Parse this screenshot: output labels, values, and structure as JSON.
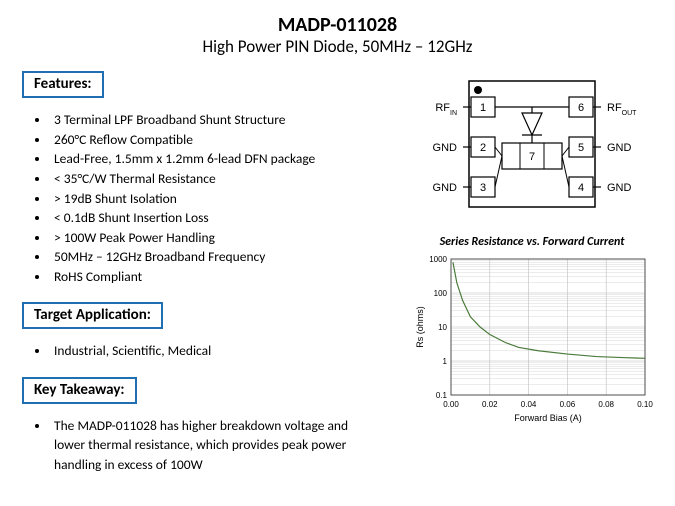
{
  "header": {
    "part_number": "MADP-011028",
    "description": "High Power PIN Diode, 50MHz – 12GHz"
  },
  "features": {
    "label": "Features:",
    "items": [
      "3 Terminal LPF Broadband Shunt Structure",
      "260°C Reflow Compatible",
      "Lead-Free, 1.5mm x 1.2mm 6-lead DFN package",
      "< 35°C/W Thermal Resistance",
      "> 19dB Shunt Isolation",
      "< 0.1dB Shunt Insertion Loss",
      "> 100W Peak Power Handling",
      "50MHz – 12GHz Broadband Frequency",
      "RoHS Compliant"
    ]
  },
  "target_application": {
    "label": "Target Application:",
    "items": [
      "Industrial, Scientific, Medical"
    ]
  },
  "key_takeaway": {
    "label": "Key Takeaway:",
    "items": [
      "The MADP-011028 has higher breakdown voltage and lower thermal resistance, which provides peak power handling in excess of 100W"
    ]
  },
  "pin_diagram": {
    "pins": [
      {
        "num": "1",
        "side": "left",
        "label": "RF",
        "sub": "IN"
      },
      {
        "num": "2",
        "side": "left",
        "label": "GND",
        "sub": ""
      },
      {
        "num": "3",
        "side": "left",
        "label": "GND",
        "sub": ""
      },
      {
        "num": "6",
        "side": "right",
        "label": "RF",
        "sub": "OUT"
      },
      {
        "num": "5",
        "side": "right",
        "label": "GND",
        "sub": ""
      },
      {
        "num": "4",
        "side": "right",
        "label": "GND",
        "sub": ""
      }
    ],
    "center_pad": "7",
    "colors": {
      "stroke": "#000000",
      "fill": "#ffffff"
    }
  },
  "chart": {
    "title": "Series Resistance vs. Forward Current",
    "type": "line",
    "xlabel": "Forward Bias (A)",
    "ylabel": "Rs (ohms)",
    "xlim": [
      0.0,
      0.1
    ],
    "xtick_step": 0.02,
    "xticks": [
      "0.00",
      "0.02",
      "0.04",
      "0.06",
      "0.08",
      "0.10"
    ],
    "y_scale": "log",
    "ylim": [
      0.1,
      1000
    ],
    "yticks": [
      "0.1",
      "1",
      "10",
      "100",
      "1000"
    ],
    "line_color": "#4a7a3a",
    "grid_color": "#bdbdbd",
    "border_color": "#4d4d4d",
    "background_color": "#ffffff",
    "axis_font_size": 9,
    "tick_font_size": 8,
    "line_width": 1.2,
    "points": [
      [
        0.001,
        800
      ],
      [
        0.003,
        200
      ],
      [
        0.006,
        60
      ],
      [
        0.01,
        20
      ],
      [
        0.015,
        10
      ],
      [
        0.02,
        6
      ],
      [
        0.028,
        3.5
      ],
      [
        0.035,
        2.5
      ],
      [
        0.045,
        2.0
      ],
      [
        0.06,
        1.6
      ],
      [
        0.075,
        1.35
      ],
      [
        0.09,
        1.25
      ],
      [
        0.1,
        1.2
      ]
    ]
  }
}
